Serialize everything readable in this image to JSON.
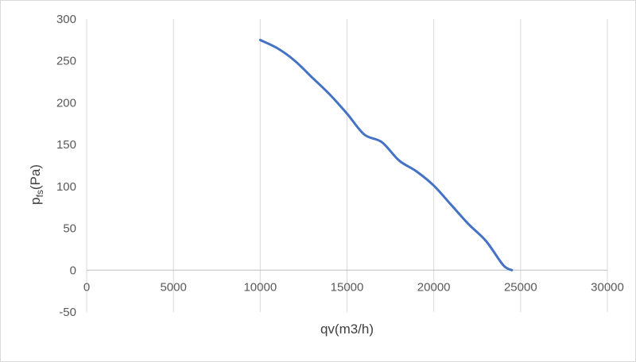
{
  "chart_data": {
    "type": "line",
    "xlabel": "qv(m3/h)",
    "ylabel": {
      "base": "p",
      "subscript": "fs",
      "suffix": "(Pa)"
    },
    "xlim": [
      0,
      30000
    ],
    "ylim": [
      -50,
      300
    ],
    "x_ticks": [
      0,
      5000,
      10000,
      15000,
      20000,
      25000,
      30000
    ],
    "y_ticks": [
      -50,
      0,
      50,
      100,
      150,
      200,
      250,
      300
    ],
    "grid": {
      "vertical": true,
      "horizontal": false
    },
    "legend": "none",
    "series": [
      {
        "color": "#4472c4",
        "x": [
          10000,
          11000,
          12000,
          13000,
          14000,
          15000,
          16000,
          17000,
          18000,
          19000,
          20000,
          21000,
          22000,
          23000,
          24000,
          24500
        ],
        "y": [
          275,
          265,
          250,
          230,
          210,
          187,
          162,
          153,
          131,
          118,
          101,
          78,
          55,
          35,
          6,
          0
        ]
      }
    ]
  }
}
